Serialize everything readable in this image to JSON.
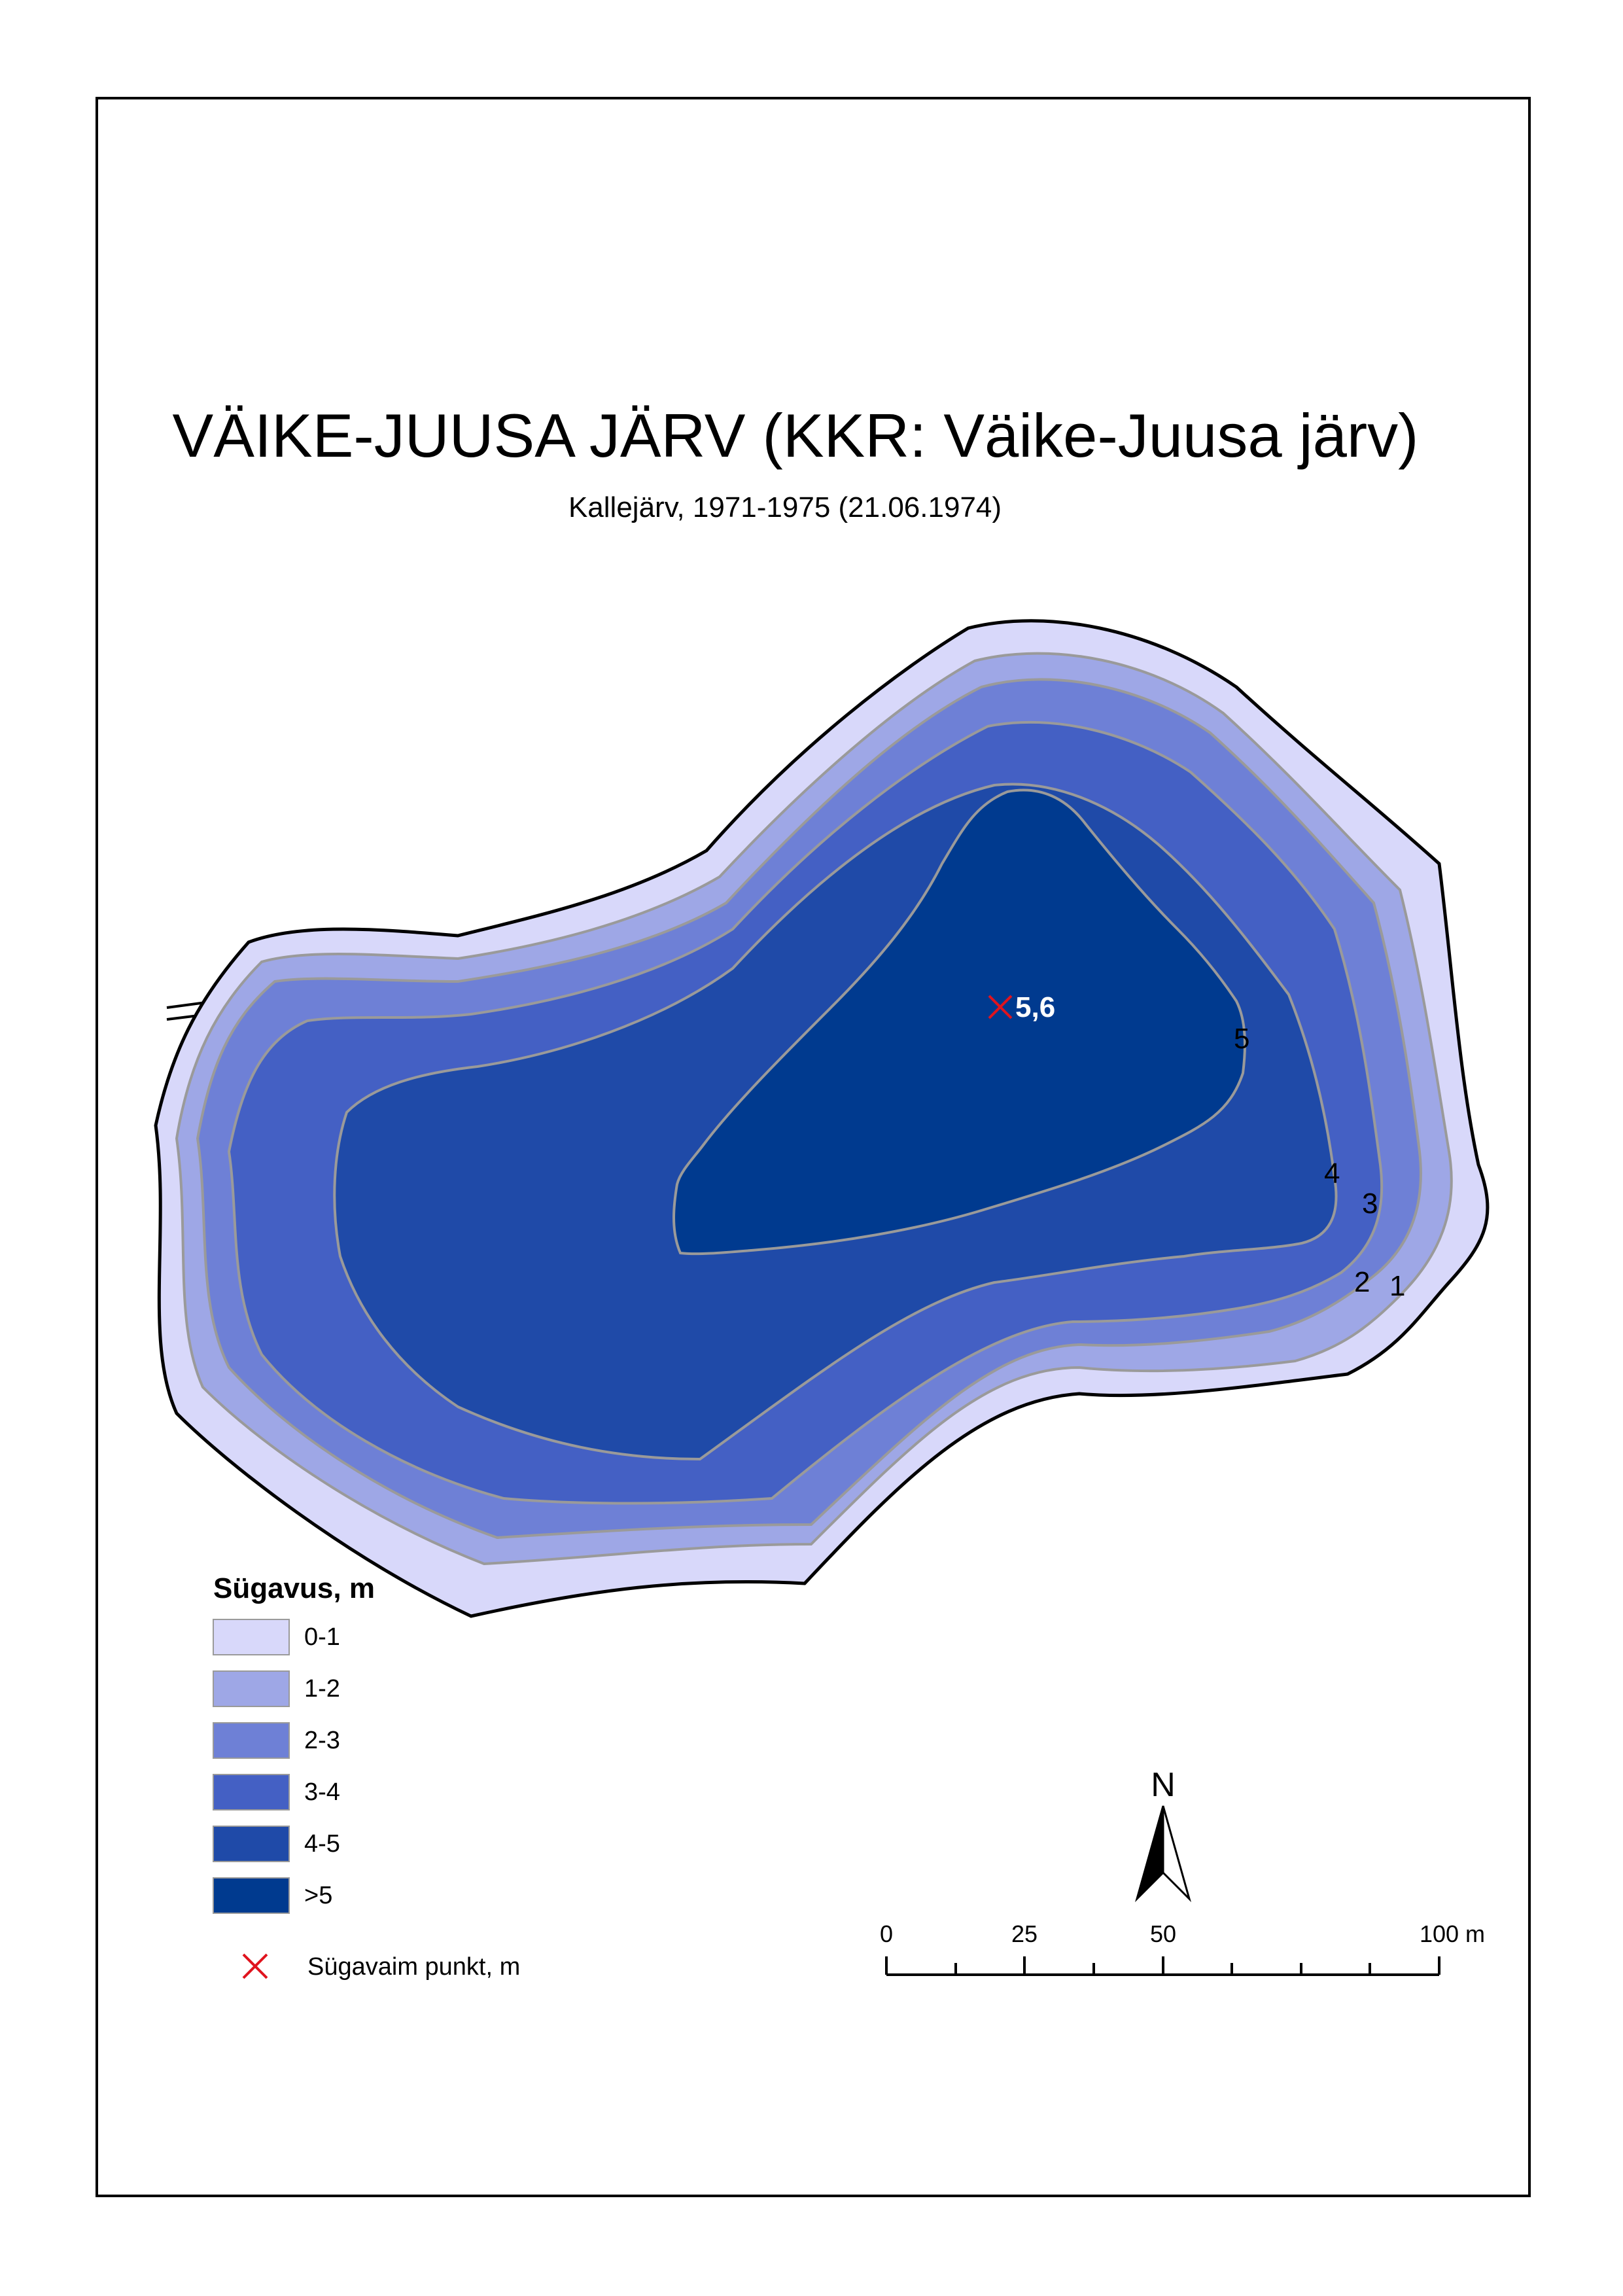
{
  "map": {
    "title": "VÄIKE-JUUSA JÄRV (KKR: Väike-Juusa järv)",
    "subtitle": "Kallejärv, 1971-1975 (21.06.1974)"
  },
  "colors": {
    "depth_0_1": "#d8d8fa",
    "depth_1_2": "#9ea7e6",
    "depth_2_3": "#6e80d6",
    "depth_3_4": "#4460c4",
    "depth_4_5": "#1f4aa8",
    "depth_gt5": "#003a8f",
    "deepest_marker": "#e0141e"
  },
  "contour_labels": [
    "5",
    "4",
    "3",
    "2",
    "1"
  ],
  "deepest_point": {
    "value": "5,6"
  },
  "legend": {
    "title": "Sügavus, m",
    "items": [
      {
        "label": "0-1",
        "color": "#d8d8fa"
      },
      {
        "label": "1-2",
        "color": "#9ea7e6"
      },
      {
        "label": "2-3",
        "color": "#6e80d6"
      },
      {
        "label": "3-4",
        "color": "#4460c4"
      },
      {
        "label": "4-5",
        "color": "#1f4aa8"
      },
      {
        "label": ">5",
        "color": "#003a8f"
      }
    ],
    "deepest_label": "Sügavaim punkt, m"
  },
  "north_arrow": {
    "label": "N"
  },
  "scale_bar": {
    "labels": [
      "0",
      "25",
      "50",
      "100 m"
    ]
  }
}
